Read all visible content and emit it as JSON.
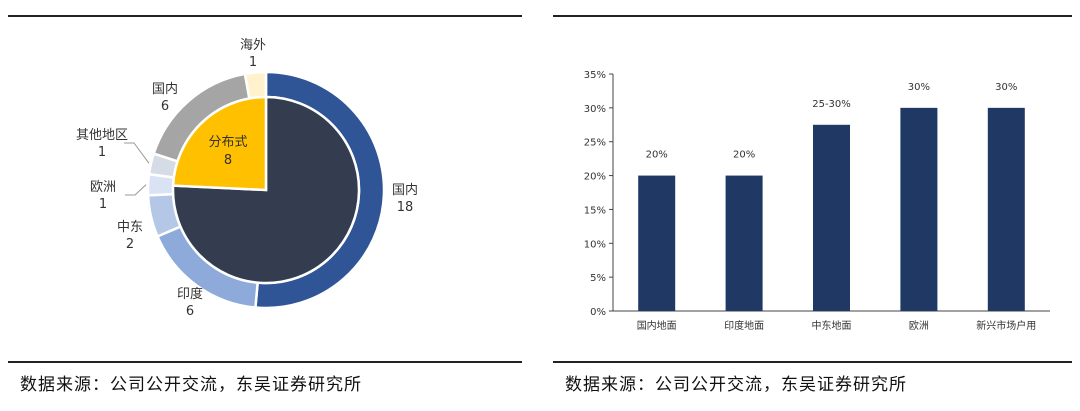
{
  "left_panel": {
    "source": "数据来源：公司公开交流，东吴证券研究所"
  },
  "right_panel": {
    "source": "数据来源：公司公开交流，东吴证券研究所"
  },
  "chart_data": [
    {
      "type": "pie",
      "title": "",
      "inner_ring": {
        "slices": [
          {
            "label": "",
            "value": 25,
            "color": "#333d4f"
          },
          {
            "label": "分布式",
            "value_label": "8",
            "value": 8,
            "color": "#ffc000"
          }
        ]
      },
      "outer_ring": {
        "slices": [
          {
            "label": "国内",
            "value_label": "18",
            "value": 18,
            "color": "#2f5597"
          },
          {
            "label": "印度",
            "value_label": "6",
            "value": 6,
            "color": "#8eaadb"
          },
          {
            "label": "中东",
            "value_label": "2",
            "value": 2,
            "color": "#b4c7e7"
          },
          {
            "label": "欧洲",
            "value_label": "1",
            "value": 1,
            "color": "#dae3f3"
          },
          {
            "label": "其他地区",
            "value_label": "1",
            "value": 1,
            "color": "#d6dce5"
          },
          {
            "label": "国内",
            "value_label": "6",
            "value": 6,
            "color": "#a5a5a5"
          },
          {
            "label": "海外",
            "value_label": "1",
            "value": 1,
            "color": "#fff2cc"
          }
        ]
      }
    },
    {
      "type": "bar",
      "title": "",
      "categories": [
        "国内地面",
        "印度地面",
        "中东地面",
        "欧洲",
        "新兴市场户用"
      ],
      "values": [
        20,
        20,
        27.5,
        30,
        30
      ],
      "data_labels": [
        "20%",
        "20%",
        "25-30%",
        "30%",
        "30%"
      ],
      "ylim": [
        0,
        35
      ],
      "yticks": [
        "0%",
        "5%",
        "10%",
        "15%",
        "20%",
        "25%",
        "30%",
        "35%"
      ],
      "xlabel": "",
      "ylabel": "",
      "bar_color": "#1f3864",
      "grid": false,
      "legend": "none"
    }
  ]
}
